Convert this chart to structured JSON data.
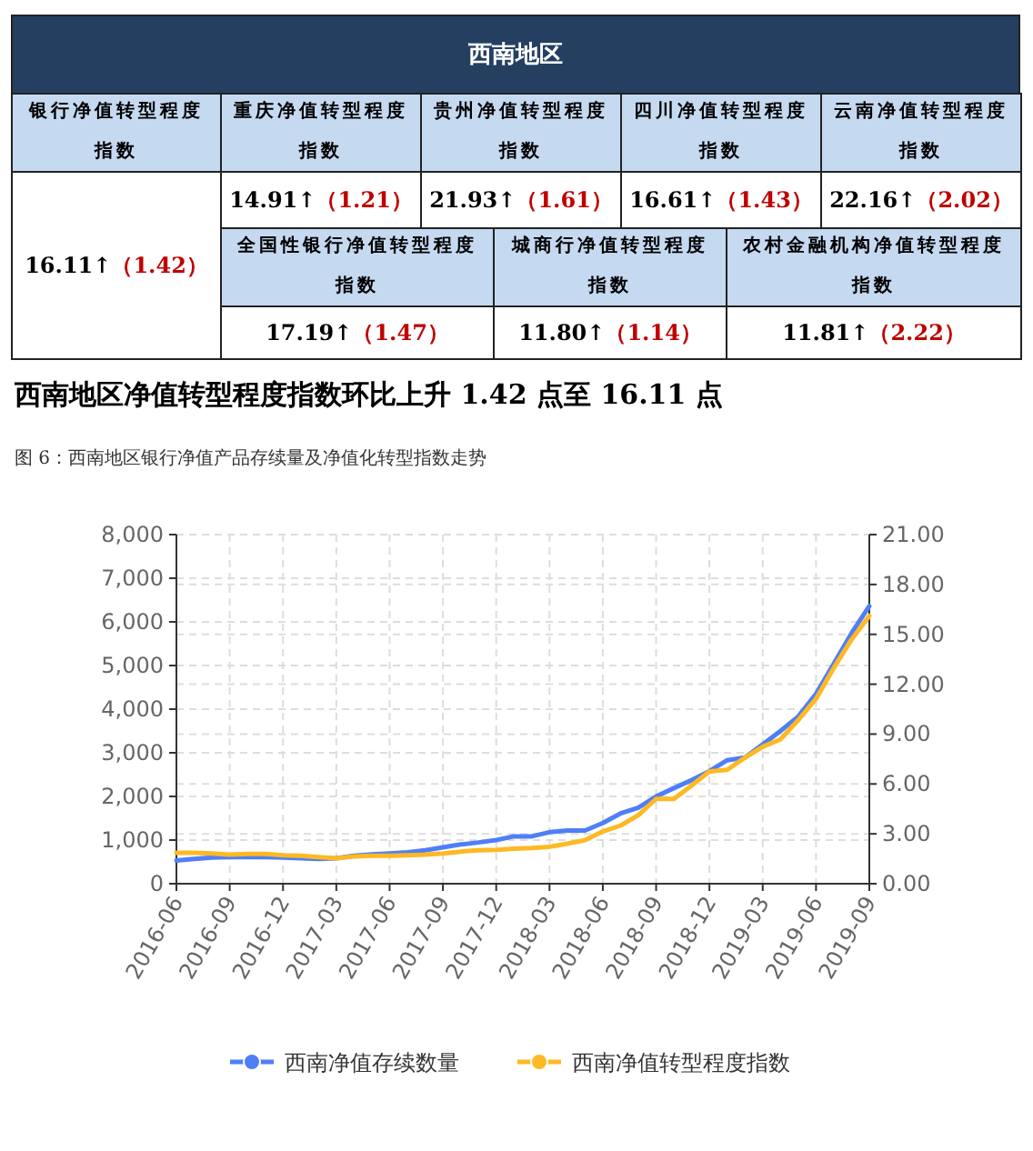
{
  "chart_data": [
    {
      "type": "other",
      "title": "西南地区",
      "annotations": [
        "银行净值转型程度指数",
        "重庆净值转型程度指数",
        "贵州净值转型程度指数",
        "四川净值转型程度指数",
        "云南净值转型程度指数",
        "16.11↑",
        "（1.42）",
        "14.91↑",
        "（1.21）",
        "21.93↑",
        "（1.61）",
        "16.61↑",
        "（1.43）",
        "22.16↑",
        "（2.02）",
        "全国性银行净值转型程度指数",
        "城商行净值转型程度指数",
        "农村金融机构净值转型程度指数",
        "17.19↑",
        "（1.47）",
        "11.80↑",
        "（1.14）",
        "11.81↑",
        "（2.22）"
      ]
    },
    {
      "type": "line",
      "title": "西南地区净值转型程度指数环比上升 1.42 点至 16.11 点",
      "subtitle": "图 6：西南地区银行净值产品存续量及净值化转型指数走势",
      "x": [
        "2016-06",
        "2016-07",
        "2016-08",
        "2016-09",
        "2016-10",
        "2016-11",
        "2016-12",
        "2017-01",
        "2017-02",
        "2017-03",
        "2017-04",
        "2017-05",
        "2017-06",
        "2017-07",
        "2017-08",
        "2017-09",
        "2017-10",
        "2017-11",
        "2017-12",
        "2018-01",
        "2018-02",
        "2018-03",
        "2018-04",
        "2018-05",
        "2018-06",
        "2018-07",
        "2018-08",
        "2018-09",
        "2018-10",
        "2018-11",
        "2018-12",
        "2019-01",
        "2019-02",
        "2019-03",
        "2019-04",
        "2019-05",
        "2019-06",
        "2019-07",
        "2019-08",
        "2019-09"
      ],
      "series": [
        {
          "name": "西南净值存续数量",
          "color": "#4f7ff7",
          "values": [
            530,
            570,
            600,
            610,
            610,
            610,
            600,
            585,
            570,
            585,
            640,
            670,
            695,
            720,
            765,
            835,
            900,
            945,
            1000,
            1085,
            1085,
            1180,
            1220,
            1220,
            1390,
            1610,
            1740,
            2000,
            2190,
            2375,
            2580,
            2830,
            2890,
            3190,
            3500,
            3830,
            4350,
            5040,
            5740,
            6360
          ]
        },
        {
          "name": "西南净值转型程度指数",
          "color": "#fdb924",
          "axis": "y2",
          "values": [
            1.86,
            1.86,
            1.82,
            1.75,
            1.79,
            1.79,
            1.71,
            1.68,
            1.6,
            1.53,
            1.64,
            1.68,
            1.68,
            1.71,
            1.75,
            1.82,
            1.93,
            2.01,
            2.04,
            2.11,
            2.15,
            2.22,
            2.41,
            2.62,
            3.14,
            3.5,
            4.12,
            5.1,
            5.1,
            5.91,
            6.75,
            6.85,
            7.58,
            8.24,
            8.68,
            9.84,
            11.12,
            12.98,
            14.69,
            16.11
          ]
        }
      ],
      "xlim": [
        "2016-06",
        "2019-09"
      ],
      "xticks": [
        "2016-06",
        "2016-09",
        "2016-12",
        "2017-03",
        "2017-06",
        "2017-09",
        "2017-12",
        "2018-03",
        "2018-06",
        "2018-09",
        "2018-12",
        "2019-03",
        "2019-06",
        "2019-09"
      ],
      "ylim": [
        0,
        8000
      ],
      "yticks": [
        0,
        {
          "value": 1000,
          "label": "1,000"
        },
        {
          "value": 2000,
          "label": "2,000"
        },
        {
          "value": 3000,
          "label": "3,000"
        },
        {
          "value": 4000,
          "label": "4,000"
        },
        {
          "value": 5000,
          "label": "5,000"
        },
        {
          "value": 6000,
          "label": "6,000"
        },
        {
          "value": 7000,
          "label": "7,000"
        },
        {
          "value": 8000,
          "label": "8,000"
        }
      ],
      "y2lim": [
        0,
        21
      ],
      "y2ticks": [
        {
          "value": 0,
          "label": "0.00"
        },
        {
          "value": 3,
          "label": "3.00"
        },
        {
          "value": 6,
          "label": "6.00"
        },
        {
          "value": 9,
          "label": "9.00"
        },
        {
          "value": 12,
          "label": "12.00"
        },
        {
          "value": 15,
          "label": "15.00"
        },
        {
          "value": 18,
          "label": "18.00"
        },
        {
          "value": 21,
          "label": "21.00"
        }
      ],
      "grid": true,
      "legend": "bottom"
    }
  ]
}
